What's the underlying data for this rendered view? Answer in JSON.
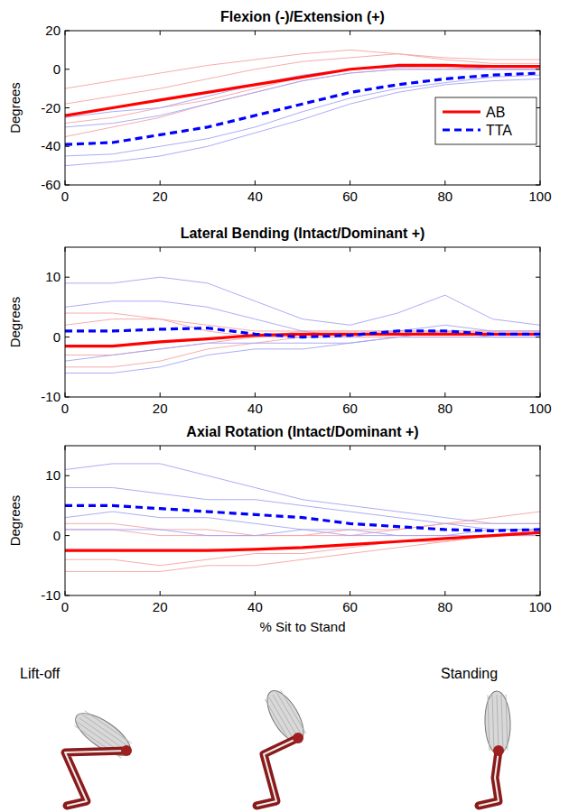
{
  "chart_data": [
    {
      "type": "line",
      "title": "Flexion (-)/Extension (+)",
      "y_label": "Degrees",
      "x": [
        0,
        10,
        20,
        30,
        40,
        50,
        60,
        70,
        80,
        90,
        100
      ],
      "xlim": [
        0,
        100
      ],
      "xticks": [
        0,
        20,
        40,
        60,
        80,
        100
      ],
      "ylim": [
        -60,
        20
      ],
      "yticks": [
        -60,
        -40,
        -20,
        0,
        20
      ],
      "legend": "right",
      "series": [
        {
          "color": "#f5a3a3",
          "line_style": "solid",
          "values": [
            -10,
            -6,
            -2,
            2,
            5,
            8,
            10,
            8,
            6,
            5,
            5
          ]
        },
        {
          "color": "#f5a3a3",
          "line_style": "solid",
          "values": [
            -35,
            -30,
            -25,
            -18,
            -12,
            -6,
            -2,
            0,
            0,
            0,
            0
          ]
        },
        {
          "color": "#f5a3a3",
          "line_style": "solid",
          "values": [
            -18,
            -14,
            -10,
            -5,
            0,
            4,
            6,
            8,
            5,
            3,
            3
          ]
        },
        {
          "color": "#f5a3a3",
          "line_style": "solid",
          "values": [
            -28,
            -25,
            -20,
            -16,
            -10,
            -4,
            0,
            1,
            1,
            0,
            0
          ]
        },
        {
          "color": "#a3a3f5",
          "line_style": "solid",
          "values": [
            -50,
            -48,
            -45,
            -40,
            -33,
            -26,
            -18,
            -12,
            -8,
            -6,
            -5
          ]
        },
        {
          "color": "#a3a3f5",
          "line_style": "solid",
          "values": [
            -30,
            -28,
            -24,
            -18,
            -12,
            -6,
            -2,
            0,
            0,
            0,
            0
          ]
        },
        {
          "color": "#a3a3f5",
          "line_style": "solid",
          "values": [
            -45,
            -44,
            -40,
            -36,
            -30,
            -22,
            -15,
            -10,
            -7,
            -4,
            -3
          ]
        },
        {
          "color": "#a3a3f5",
          "line_style": "solid",
          "values": [
            -25,
            -22,
            -20,
            -14,
            -8,
            -3,
            0,
            1,
            2,
            0,
            0
          ]
        },
        {
          "name": "AB",
          "color": "#ff0000",
          "line_style": "solid",
          "values": [
            -24,
            -20,
            -16,
            -12,
            -8,
            -4,
            0,
            2,
            2,
            1.5,
            1.5
          ]
        },
        {
          "name": "TTA",
          "color": "#0000ff",
          "line_style": "dashed",
          "values": [
            -39,
            -38,
            -34,
            -30,
            -24,
            -18,
            -12,
            -8,
            -5,
            -3,
            -2
          ]
        }
      ]
    },
    {
      "type": "line",
      "title": "Lateral Bending (Intact/Dominant +)",
      "y_label": "Degrees",
      "x": [
        0,
        10,
        20,
        30,
        40,
        50,
        60,
        70,
        80,
        90,
        100
      ],
      "xlim": [
        0,
        100
      ],
      "xticks": [
        0,
        20,
        40,
        60,
        80,
        100
      ],
      "ylim": [
        -10,
        15
      ],
      "yticks": [
        -10,
        0,
        10
      ],
      "series": [
        {
          "color": "#f5a3a3",
          "line_style": "solid",
          "values": [
            2,
            3,
            3,
            2,
            1,
            1,
            1,
            1,
            1,
            1,
            1
          ]
        },
        {
          "color": "#f5a3a3",
          "line_style": "solid",
          "values": [
            -5,
            -5,
            -4,
            -2,
            -1,
            0,
            0,
            0,
            0,
            0,
            0
          ]
        },
        {
          "color": "#f5a3a3",
          "line_style": "solid",
          "values": [
            4,
            4,
            3,
            1,
            0,
            1,
            1,
            1,
            1,
            1,
            1
          ]
        },
        {
          "color": "#f5a3a3",
          "line_style": "solid",
          "values": [
            -3,
            -3,
            -2,
            -1,
            0,
            0,
            0,
            0,
            0,
            0,
            0
          ]
        },
        {
          "color": "#a3a3f5",
          "line_style": "solid",
          "values": [
            9,
            9,
            10,
            9,
            6,
            3,
            2,
            4,
            7,
            3,
            2
          ]
        },
        {
          "color": "#a3a3f5",
          "line_style": "solid",
          "values": [
            -6,
            -6,
            -5,
            -3,
            -2,
            -2,
            -1,
            0,
            0,
            0,
            0
          ]
        },
        {
          "color": "#a3a3f5",
          "line_style": "solid",
          "values": [
            5,
            6,
            6,
            5,
            3,
            1,
            0,
            1,
            2,
            1,
            1
          ]
        },
        {
          "color": "#a3a3f5",
          "line_style": "solid",
          "values": [
            -4,
            -3,
            -2,
            -1,
            -1,
            -1,
            -1,
            0,
            1,
            0,
            0
          ]
        },
        {
          "color": "#ff0000",
          "line_style": "solid",
          "values": [
            -1.5,
            -1.5,
            -0.8,
            -0.3,
            0.3,
            0.5,
            0.5,
            0.5,
            0.5,
            0.5,
            0.5
          ]
        },
        {
          "color": "#0000ff",
          "line_style": "dashed",
          "values": [
            1,
            1,
            1.3,
            1.5,
            0.5,
            0,
            0.3,
            1,
            1,
            0.5,
            0.5
          ]
        }
      ]
    },
    {
      "type": "line",
      "title": "Axial Rotation (Intact/Dominant +)",
      "y_label": "Degrees",
      "x_label": "% Sit to Stand",
      "x": [
        0,
        10,
        20,
        30,
        40,
        50,
        60,
        70,
        80,
        90,
        100
      ],
      "xlim": [
        0,
        100
      ],
      "xticks": [
        0,
        20,
        40,
        60,
        80,
        100
      ],
      "ylim": [
        -10,
        15
      ],
      "yticks": [
        -10,
        0,
        10
      ],
      "series": [
        {
          "color": "#f5a3a3",
          "line_style": "solid",
          "values": [
            1,
            1,
            0,
            0,
            0,
            0,
            1,
            1,
            2,
            2,
            2
          ]
        },
        {
          "color": "#f5a3a3",
          "line_style": "solid",
          "values": [
            -6,
            -6,
            -6,
            -5,
            -5,
            -4,
            -3,
            -2,
            -1,
            0,
            0
          ]
        },
        {
          "color": "#f5a3a3",
          "line_style": "solid",
          "values": [
            -4,
            -4,
            -5,
            -4,
            -3,
            -3,
            -2,
            -1,
            -1,
            0,
            1
          ]
        },
        {
          "color": "#f5a3a3",
          "line_style": "solid",
          "values": [
            2,
            2,
            1,
            1,
            0,
            0,
            0,
            1,
            2,
            3,
            4
          ]
        },
        {
          "color": "#a3a3f5",
          "line_style": "solid",
          "values": [
            11,
            12,
            12,
            10,
            8,
            6,
            5,
            4,
            3,
            2,
            2
          ]
        },
        {
          "color": "#a3a3f5",
          "line_style": "solid",
          "values": [
            1,
            1,
            1,
            0,
            0,
            1,
            0,
            0,
            0,
            0,
            0
          ]
        },
        {
          "color": "#a3a3f5",
          "line_style": "solid",
          "values": [
            8,
            8,
            7,
            6,
            6,
            5,
            4,
            3,
            2,
            1,
            1
          ]
        },
        {
          "color": "#a3a3f5",
          "line_style": "solid",
          "values": [
            3,
            4,
            3,
            3,
            2,
            1,
            1,
            0,
            0,
            1,
            1
          ]
        },
        {
          "color": "#ff0000",
          "line_style": "solid",
          "values": [
            -2.5,
            -2.5,
            -2.5,
            -2.5,
            -2.3,
            -2,
            -1.5,
            -1,
            -0.5,
            0,
            0.5
          ]
        },
        {
          "color": "#0000ff",
          "line_style": "dashed",
          "values": [
            5,
            5,
            4.5,
            4,
            3.5,
            3,
            2,
            1.5,
            1,
            0.8,
            1
          ]
        }
      ]
    }
  ],
  "figure": {
    "labels": [
      "Lift-off",
      "Standing"
    ]
  }
}
